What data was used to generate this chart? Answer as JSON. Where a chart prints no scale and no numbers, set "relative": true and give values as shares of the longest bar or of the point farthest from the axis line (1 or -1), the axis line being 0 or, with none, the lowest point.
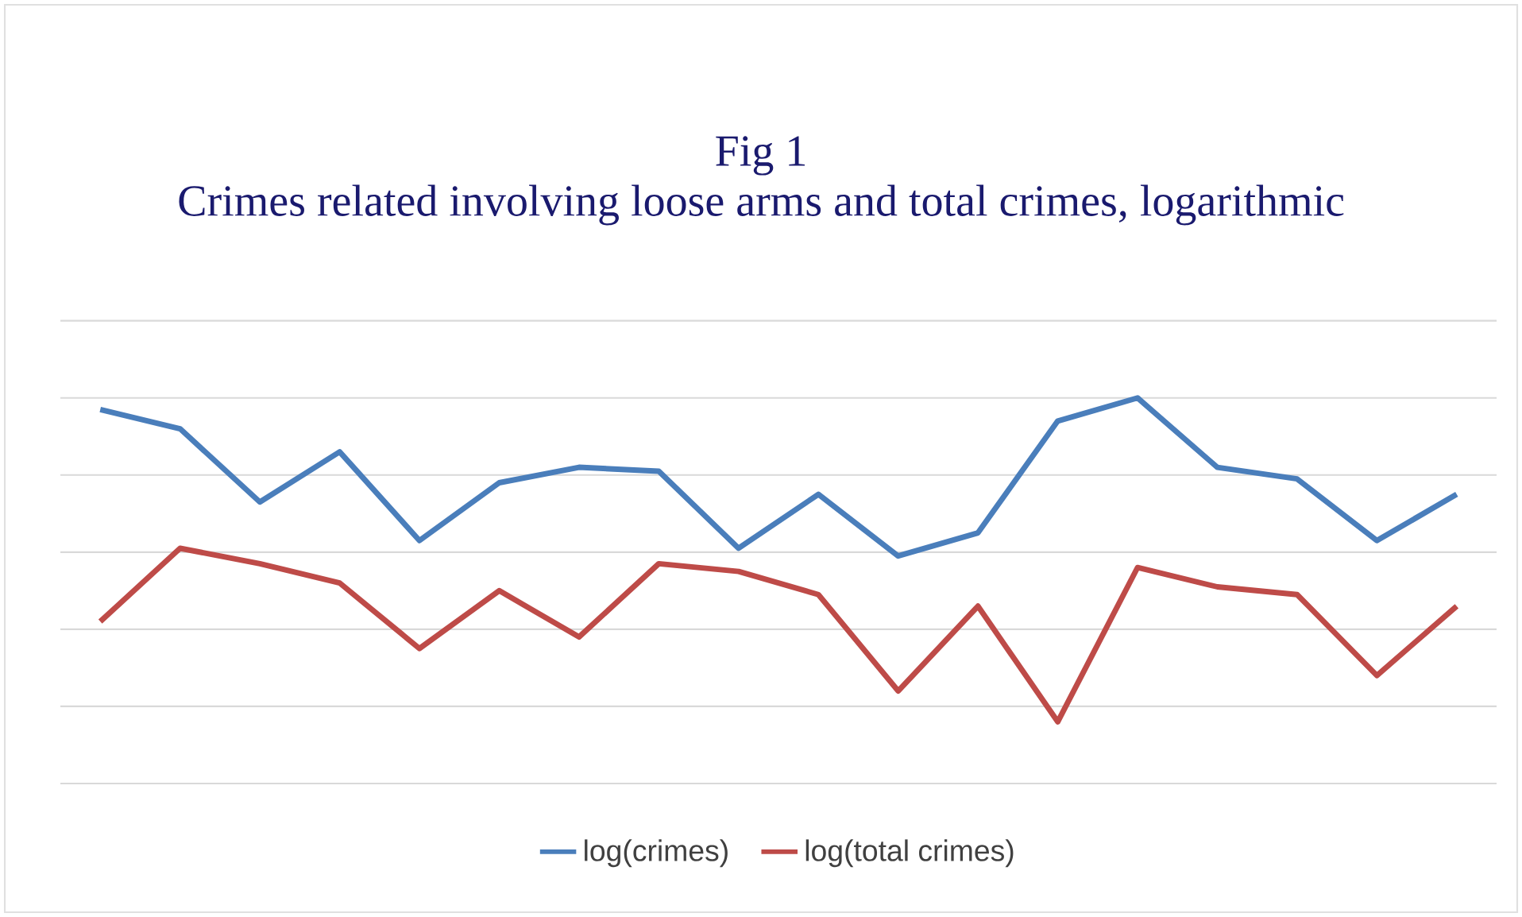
{
  "chart_data": {
    "type": "line",
    "title": "Fig 1",
    "subtitle": "Crimes related involving loose arms and total crimes, logarithmic",
    "categories": [
      null,
      null,
      null,
      null,
      null,
      null,
      null,
      null,
      null,
      null,
      null,
      null,
      null,
      null,
      null,
      null,
      null,
      null
    ],
    "relative": true,
    "grid": "y",
    "legend": "bottom",
    "series": [
      {
        "name": "log(crimes)",
        "color": "#4a7ebb",
        "values": [
          0.97,
          0.92,
          0.73,
          0.86,
          0.63,
          0.78,
          0.82,
          0.81,
          0.61,
          0.75,
          0.59,
          0.65,
          0.94,
          1,
          0.82,
          0.79,
          0.63,
          0.75
        ]
      },
      {
        "name": "log(total crimes)",
        "color": "#be4b48",
        "values": [
          0.42,
          0.61,
          0.57,
          0.52,
          0.35,
          0.5,
          0.38,
          0.57,
          0.55,
          0.49,
          0.24,
          0.46,
          0.16,
          0.56,
          0.51,
          0.49,
          0.28,
          0.46
        ]
      }
    ]
  }
}
